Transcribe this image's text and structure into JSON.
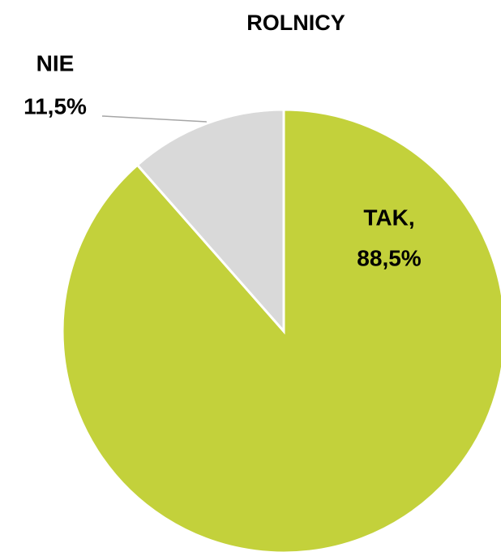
{
  "chart_data": {
    "type": "pie",
    "title": "ROLNICY",
    "categories": [
      "TAK,",
      "NIE"
    ],
    "values": [
      88.5,
      11.5
    ],
    "value_labels": [
      "88,5%",
      "11,5%"
    ],
    "colors": [
      "#c3d13b",
      "#d9d9d9"
    ]
  }
}
